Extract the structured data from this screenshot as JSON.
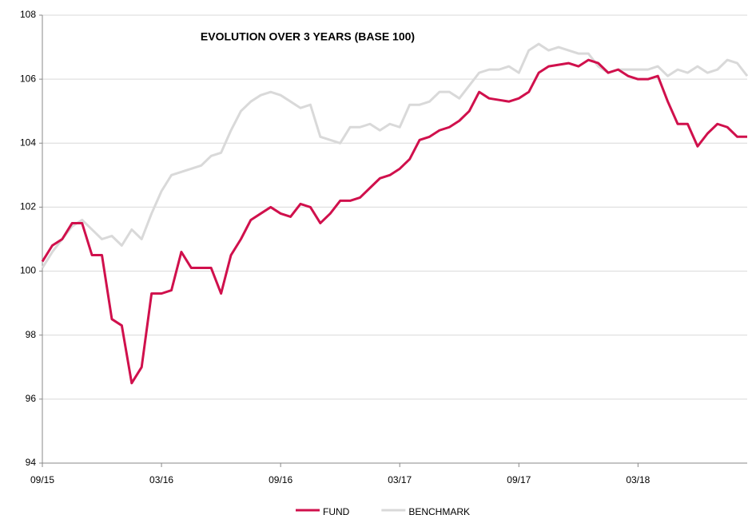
{
  "chart_data": {
    "type": "line",
    "title": "EVOLUTION OVER 3 YEARS (BASE 100)",
    "categories": [
      "09/15",
      null,
      null,
      null,
      null,
      null,
      null,
      null,
      null,
      null,
      null,
      null,
      "03/16",
      null,
      null,
      null,
      null,
      null,
      null,
      null,
      null,
      null,
      null,
      null,
      "09/16",
      null,
      null,
      null,
      null,
      null,
      null,
      null,
      null,
      null,
      null,
      null,
      "03/17",
      null,
      null,
      null,
      null,
      null,
      null,
      null,
      null,
      null,
      null,
      null,
      "09/17",
      null,
      null,
      null,
      null,
      null,
      null,
      null,
      null,
      null,
      null,
      null,
      "03/18",
      null,
      null,
      null,
      null,
      null,
      null,
      null,
      null,
      null,
      null,
      null
    ],
    "series": [
      {
        "name": "FUND",
        "color": "#d0104c",
        "values": [
          100.3,
          100.8,
          101.0,
          101.5,
          101.5,
          100.5,
          100.5,
          98.5,
          98.3,
          96.5,
          97.0,
          99.3,
          99.3,
          99.4,
          100.6,
          100.1,
          100.1,
          100.1,
          99.3,
          100.5,
          101.0,
          101.6,
          101.8,
          102.0,
          101.8,
          101.7,
          102.1,
          102.0,
          101.5,
          101.8,
          102.2,
          102.2,
          102.3,
          102.6,
          102.9,
          103.0,
          103.2,
          103.5,
          104.1,
          104.2,
          104.4,
          104.5,
          104.7,
          105.0,
          105.6,
          105.4,
          105.35,
          105.3,
          105.4,
          105.6,
          106.2,
          106.4,
          106.45,
          106.5,
          106.4,
          106.6,
          106.5,
          106.2,
          106.3,
          106.1,
          106.0,
          106.0,
          106.1,
          105.3,
          104.6,
          104.6,
          103.9,
          104.3,
          104.6,
          104.5,
          104.2,
          104.2
        ]
      },
      {
        "name": "BENCHMARK",
        "color": "#d9d9d9",
        "values": [
          100.1,
          100.6,
          101.0,
          101.4,
          101.6,
          101.3,
          101.0,
          101.1,
          100.8,
          101.3,
          101.0,
          101.8,
          102.5,
          103.0,
          103.1,
          103.2,
          103.3,
          103.6,
          103.7,
          104.4,
          105.0,
          105.3,
          105.5,
          105.6,
          105.5,
          105.3,
          105.1,
          105.2,
          104.2,
          104.1,
          104.0,
          104.5,
          104.5,
          104.6,
          104.4,
          104.6,
          104.5,
          105.2,
          105.2,
          105.3,
          105.6,
          105.6,
          105.4,
          105.8,
          106.2,
          106.3,
          106.3,
          106.4,
          106.2,
          106.9,
          107.1,
          106.9,
          107.0,
          106.9,
          106.8,
          106.8,
          106.4,
          106.2,
          106.3,
          106.3,
          106.3,
          106.3,
          106.4,
          106.1,
          106.3,
          106.2,
          106.4,
          106.2,
          106.3,
          106.6,
          106.5,
          106.1
        ]
      }
    ],
    "ylim": [
      94,
      108
    ],
    "yticks": [
      94,
      96,
      98,
      100,
      102,
      104,
      106,
      108
    ],
    "grid": true,
    "legend": "bottom"
  }
}
